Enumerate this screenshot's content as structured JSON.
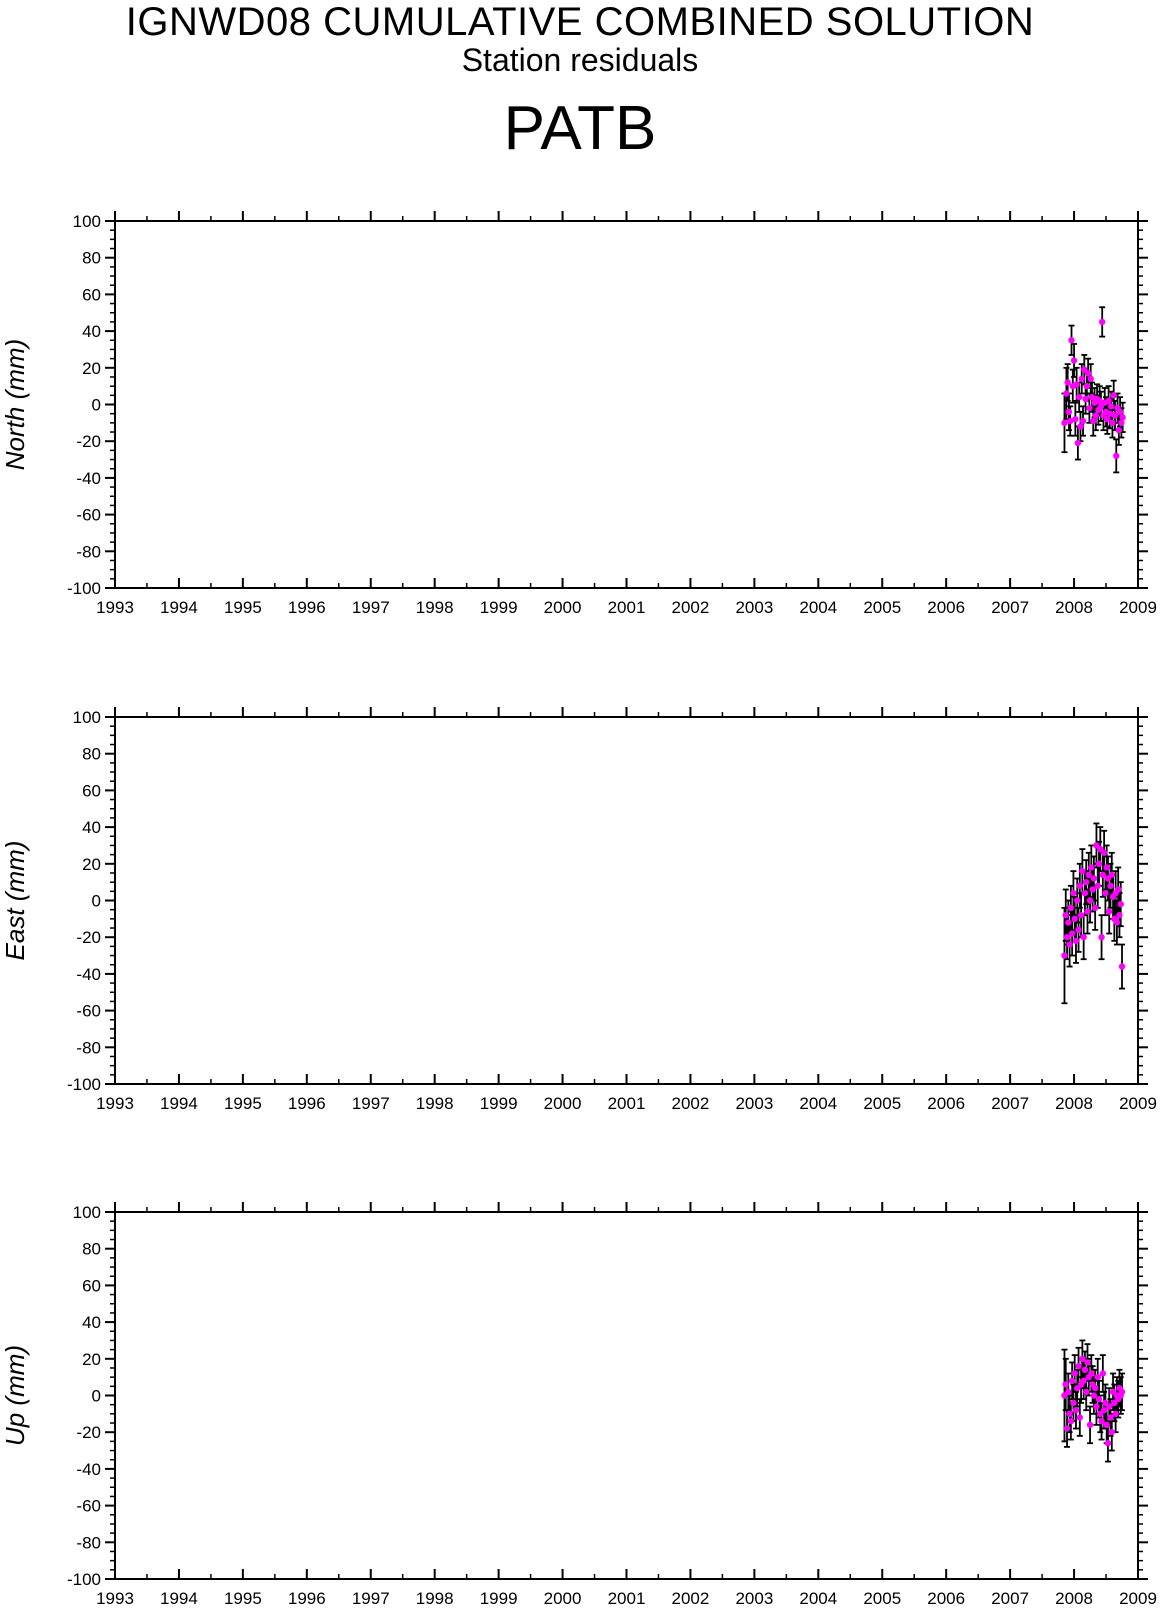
{
  "header": {
    "title": "IGNWD08 CUMULATIVE COMBINED SOLUTION",
    "subtitle": "Station residuals",
    "station": "PATB"
  },
  "style": {
    "marker_color": "#ff00ff",
    "errorbar_color": "#000000",
    "axis_color": "#000000"
  },
  "chart_data": [
    {
      "type": "scatter",
      "ylabel": "North (mm)",
      "xlim": [
        1993,
        2009
      ],
      "ylim": [
        -100,
        100
      ],
      "x_ticks": [
        "1993",
        "1994",
        "1995",
        "1996",
        "1997",
        "1998",
        "1999",
        "2000",
        "2001",
        "2002",
        "2003",
        "2004",
        "2005",
        "2006",
        "2007",
        "2008",
        "2009"
      ],
      "y_ticks": [
        "-100",
        "-80",
        "-60",
        "-40",
        "-20",
        "0",
        "20",
        "40",
        "60",
        "80",
        "100"
      ],
      "grid": false,
      "points": [
        {
          "x": 2007.85,
          "y": -10,
          "err": 16
        },
        {
          "x": 2007.88,
          "y": 6,
          "err": 14
        },
        {
          "x": 2007.9,
          "y": 12,
          "err": 10
        },
        {
          "x": 2007.92,
          "y": -4,
          "err": 10
        },
        {
          "x": 2007.94,
          "y": -9,
          "err": 8
        },
        {
          "x": 2007.96,
          "y": 35,
          "err": 8
        },
        {
          "x": 2007.98,
          "y": 10,
          "err": 9
        },
        {
          "x": 2008.0,
          "y": 24,
          "err": 9
        },
        {
          "x": 2008.02,
          "y": -8,
          "err": 9
        },
        {
          "x": 2008.04,
          "y": 11,
          "err": 9
        },
        {
          "x": 2008.06,
          "y": -21,
          "err": 9
        },
        {
          "x": 2008.08,
          "y": 4,
          "err": 8
        },
        {
          "x": 2008.1,
          "y": -12,
          "err": 8
        },
        {
          "x": 2008.12,
          "y": 14,
          "err": 8
        },
        {
          "x": 2008.14,
          "y": -9,
          "err": 8
        },
        {
          "x": 2008.16,
          "y": 19,
          "err": 8
        },
        {
          "x": 2008.18,
          "y": 3,
          "err": 8
        },
        {
          "x": 2008.2,
          "y": 10,
          "err": 8
        },
        {
          "x": 2008.22,
          "y": 17,
          "err": 8
        },
        {
          "x": 2008.24,
          "y": -2,
          "err": 8
        },
        {
          "x": 2008.26,
          "y": 14,
          "err": 8
        },
        {
          "x": 2008.28,
          "y": 4,
          "err": 8
        },
        {
          "x": 2008.3,
          "y": -9,
          "err": 8
        },
        {
          "x": 2008.32,
          "y": 1,
          "err": 8
        },
        {
          "x": 2008.34,
          "y": -6,
          "err": 8
        },
        {
          "x": 2008.36,
          "y": 3,
          "err": 8
        },
        {
          "x": 2008.38,
          "y": -3,
          "err": 8
        },
        {
          "x": 2008.4,
          "y": 2,
          "err": 8
        },
        {
          "x": 2008.42,
          "y": -1,
          "err": 8
        },
        {
          "x": 2008.44,
          "y": 45,
          "err": 8
        },
        {
          "x": 2008.46,
          "y": -6,
          "err": 8
        },
        {
          "x": 2008.48,
          "y": 1,
          "err": 8
        },
        {
          "x": 2008.5,
          "y": -4,
          "err": 8
        },
        {
          "x": 2008.52,
          "y": -8,
          "err": 8
        },
        {
          "x": 2008.54,
          "y": 2,
          "err": 8
        },
        {
          "x": 2008.56,
          "y": -5,
          "err": 8
        },
        {
          "x": 2008.58,
          "y": -1,
          "err": 8
        },
        {
          "x": 2008.6,
          "y": -10,
          "err": 8
        },
        {
          "x": 2008.62,
          "y": 5,
          "err": 8
        },
        {
          "x": 2008.64,
          "y": -6,
          "err": 8
        },
        {
          "x": 2008.66,
          "y": -28,
          "err": 9
        },
        {
          "x": 2008.68,
          "y": -2,
          "err": 8
        },
        {
          "x": 2008.7,
          "y": -14,
          "err": 8
        },
        {
          "x": 2008.72,
          "y": -4,
          "err": 8
        },
        {
          "x": 2008.74,
          "y": -10,
          "err": 8
        },
        {
          "x": 2008.76,
          "y": -7,
          "err": 8
        }
      ]
    },
    {
      "type": "scatter",
      "ylabel": "East (mm)",
      "xlim": [
        1993,
        2009
      ],
      "ylim": [
        -100,
        100
      ],
      "x_ticks": [
        "1993",
        "1994",
        "1995",
        "1996",
        "1997",
        "1998",
        "1999",
        "2000",
        "2001",
        "2002",
        "2003",
        "2004",
        "2005",
        "2006",
        "2007",
        "2008",
        "2009"
      ],
      "y_ticks": [
        "-100",
        "-80",
        "-60",
        "-40",
        "-20",
        "0",
        "20",
        "40",
        "60",
        "80",
        "100"
      ],
      "grid": false,
      "points": [
        {
          "x": 2007.85,
          "y": -30,
          "err": 26
        },
        {
          "x": 2007.87,
          "y": -8,
          "err": 14
        },
        {
          "x": 2007.89,
          "y": -20,
          "err": 12
        },
        {
          "x": 2007.91,
          "y": -12,
          "err": 12
        },
        {
          "x": 2007.93,
          "y": -24,
          "err": 12
        },
        {
          "x": 2007.95,
          "y": -4,
          "err": 12
        },
        {
          "x": 2007.97,
          "y": -18,
          "err": 12
        },
        {
          "x": 2007.99,
          "y": 4,
          "err": 12
        },
        {
          "x": 2008.01,
          "y": -10,
          "err": 12
        },
        {
          "x": 2008.03,
          "y": -22,
          "err": 12
        },
        {
          "x": 2008.05,
          "y": 0,
          "err": 12
        },
        {
          "x": 2008.07,
          "y": -16,
          "err": 12
        },
        {
          "x": 2008.09,
          "y": 8,
          "err": 12
        },
        {
          "x": 2008.11,
          "y": -8,
          "err": 12
        },
        {
          "x": 2008.13,
          "y": 16,
          "err": 12
        },
        {
          "x": 2008.15,
          "y": -20,
          "err": 12
        },
        {
          "x": 2008.17,
          "y": 4,
          "err": 12
        },
        {
          "x": 2008.19,
          "y": 10,
          "err": 12
        },
        {
          "x": 2008.21,
          "y": -6,
          "err": 12
        },
        {
          "x": 2008.23,
          "y": 14,
          "err": 12
        },
        {
          "x": 2008.25,
          "y": 0,
          "err": 12
        },
        {
          "x": 2008.27,
          "y": 18,
          "err": 12
        },
        {
          "x": 2008.29,
          "y": 6,
          "err": 12
        },
        {
          "x": 2008.31,
          "y": 12,
          "err": 12
        },
        {
          "x": 2008.33,
          "y": -4,
          "err": 12
        },
        {
          "x": 2008.35,
          "y": 30,
          "err": 12
        },
        {
          "x": 2008.37,
          "y": 8,
          "err": 12
        },
        {
          "x": 2008.39,
          "y": 20,
          "err": 12
        },
        {
          "x": 2008.41,
          "y": 28,
          "err": 12
        },
        {
          "x": 2008.43,
          "y": -20,
          "err": 12
        },
        {
          "x": 2008.45,
          "y": 14,
          "err": 12
        },
        {
          "x": 2008.47,
          "y": 26,
          "err": 12
        },
        {
          "x": 2008.49,
          "y": 4,
          "err": 12
        },
        {
          "x": 2008.51,
          "y": 18,
          "err": 12
        },
        {
          "x": 2008.53,
          "y": 12,
          "err": 12
        },
        {
          "x": 2008.55,
          "y": -6,
          "err": 12
        },
        {
          "x": 2008.57,
          "y": 8,
          "err": 12
        },
        {
          "x": 2008.59,
          "y": 14,
          "err": 12
        },
        {
          "x": 2008.61,
          "y": 2,
          "err": 12
        },
        {
          "x": 2008.63,
          "y": -10,
          "err": 12
        },
        {
          "x": 2008.65,
          "y": 4,
          "err": 12
        },
        {
          "x": 2008.67,
          "y": -12,
          "err": 12
        },
        {
          "x": 2008.69,
          "y": 6,
          "err": 12
        },
        {
          "x": 2008.71,
          "y": -8,
          "err": 12
        },
        {
          "x": 2008.73,
          "y": -2,
          "err": 12
        },
        {
          "x": 2008.75,
          "y": -36,
          "err": 12
        }
      ]
    },
    {
      "type": "scatter",
      "ylabel": "Up (mm)",
      "xlim": [
        1993,
        2009
      ],
      "ylim": [
        -100,
        100
      ],
      "x_ticks": [
        "1993",
        "1994",
        "1995",
        "1996",
        "1997",
        "1998",
        "1999",
        "2000",
        "2001",
        "2002",
        "2003",
        "2004",
        "2005",
        "2006",
        "2007",
        "2008",
        "2009"
      ],
      "y_ticks": [
        "-100",
        "-80",
        "-60",
        "-40",
        "-20",
        "0",
        "20",
        "40",
        "60",
        "80",
        "100"
      ],
      "grid": false,
      "points": [
        {
          "x": 2007.85,
          "y": 0,
          "err": 25
        },
        {
          "x": 2007.87,
          "y": 6,
          "err": 14
        },
        {
          "x": 2007.89,
          "y": -18,
          "err": 10
        },
        {
          "x": 2007.91,
          "y": 2,
          "err": 10
        },
        {
          "x": 2007.93,
          "y": -10,
          "err": 10
        },
        {
          "x": 2007.95,
          "y": -14,
          "err": 10
        },
        {
          "x": 2007.97,
          "y": 8,
          "err": 10
        },
        {
          "x": 2007.99,
          "y": -4,
          "err": 10
        },
        {
          "x": 2008.01,
          "y": 12,
          "err": 10
        },
        {
          "x": 2008.03,
          "y": -8,
          "err": 10
        },
        {
          "x": 2008.05,
          "y": 4,
          "err": 10
        },
        {
          "x": 2008.07,
          "y": 16,
          "err": 10
        },
        {
          "x": 2008.09,
          "y": -12,
          "err": 10
        },
        {
          "x": 2008.11,
          "y": 6,
          "err": 10
        },
        {
          "x": 2008.13,
          "y": 20,
          "err": 10
        },
        {
          "x": 2008.15,
          "y": 8,
          "err": 10
        },
        {
          "x": 2008.17,
          "y": 14,
          "err": 10
        },
        {
          "x": 2008.19,
          "y": 2,
          "err": 10
        },
        {
          "x": 2008.21,
          "y": 18,
          "err": 10
        },
        {
          "x": 2008.23,
          "y": 10,
          "err": 10
        },
        {
          "x": 2008.25,
          "y": -16,
          "err": 10
        },
        {
          "x": 2008.27,
          "y": 12,
          "err": 10
        },
        {
          "x": 2008.29,
          "y": 6,
          "err": 10
        },
        {
          "x": 2008.31,
          "y": 0,
          "err": 10
        },
        {
          "x": 2008.33,
          "y": 4,
          "err": 10
        },
        {
          "x": 2008.35,
          "y": -6,
          "err": 10
        },
        {
          "x": 2008.37,
          "y": 10,
          "err": 10
        },
        {
          "x": 2008.39,
          "y": -2,
          "err": 10
        },
        {
          "x": 2008.41,
          "y": -10,
          "err": 10
        },
        {
          "x": 2008.43,
          "y": -14,
          "err": 10
        },
        {
          "x": 2008.45,
          "y": 12,
          "err": 10
        },
        {
          "x": 2008.47,
          "y": -8,
          "err": 10
        },
        {
          "x": 2008.49,
          "y": -4,
          "err": 10
        },
        {
          "x": 2008.51,
          "y": -16,
          "err": 10
        },
        {
          "x": 2008.53,
          "y": -26,
          "err": 10
        },
        {
          "x": 2008.55,
          "y": -6,
          "err": 10
        },
        {
          "x": 2008.57,
          "y": -12,
          "err": 10
        },
        {
          "x": 2008.59,
          "y": -20,
          "err": 10
        },
        {
          "x": 2008.61,
          "y": 2,
          "err": 10
        },
        {
          "x": 2008.63,
          "y": -4,
          "err": 10
        },
        {
          "x": 2008.65,
          "y": -10,
          "err": 10
        },
        {
          "x": 2008.67,
          "y": 0,
          "err": 10
        },
        {
          "x": 2008.69,
          "y": -2,
          "err": 10
        },
        {
          "x": 2008.71,
          "y": 4,
          "err": 10
        },
        {
          "x": 2008.73,
          "y": 0,
          "err": 10
        },
        {
          "x": 2008.75,
          "y": 2,
          "err": 10
        }
      ]
    }
  ]
}
